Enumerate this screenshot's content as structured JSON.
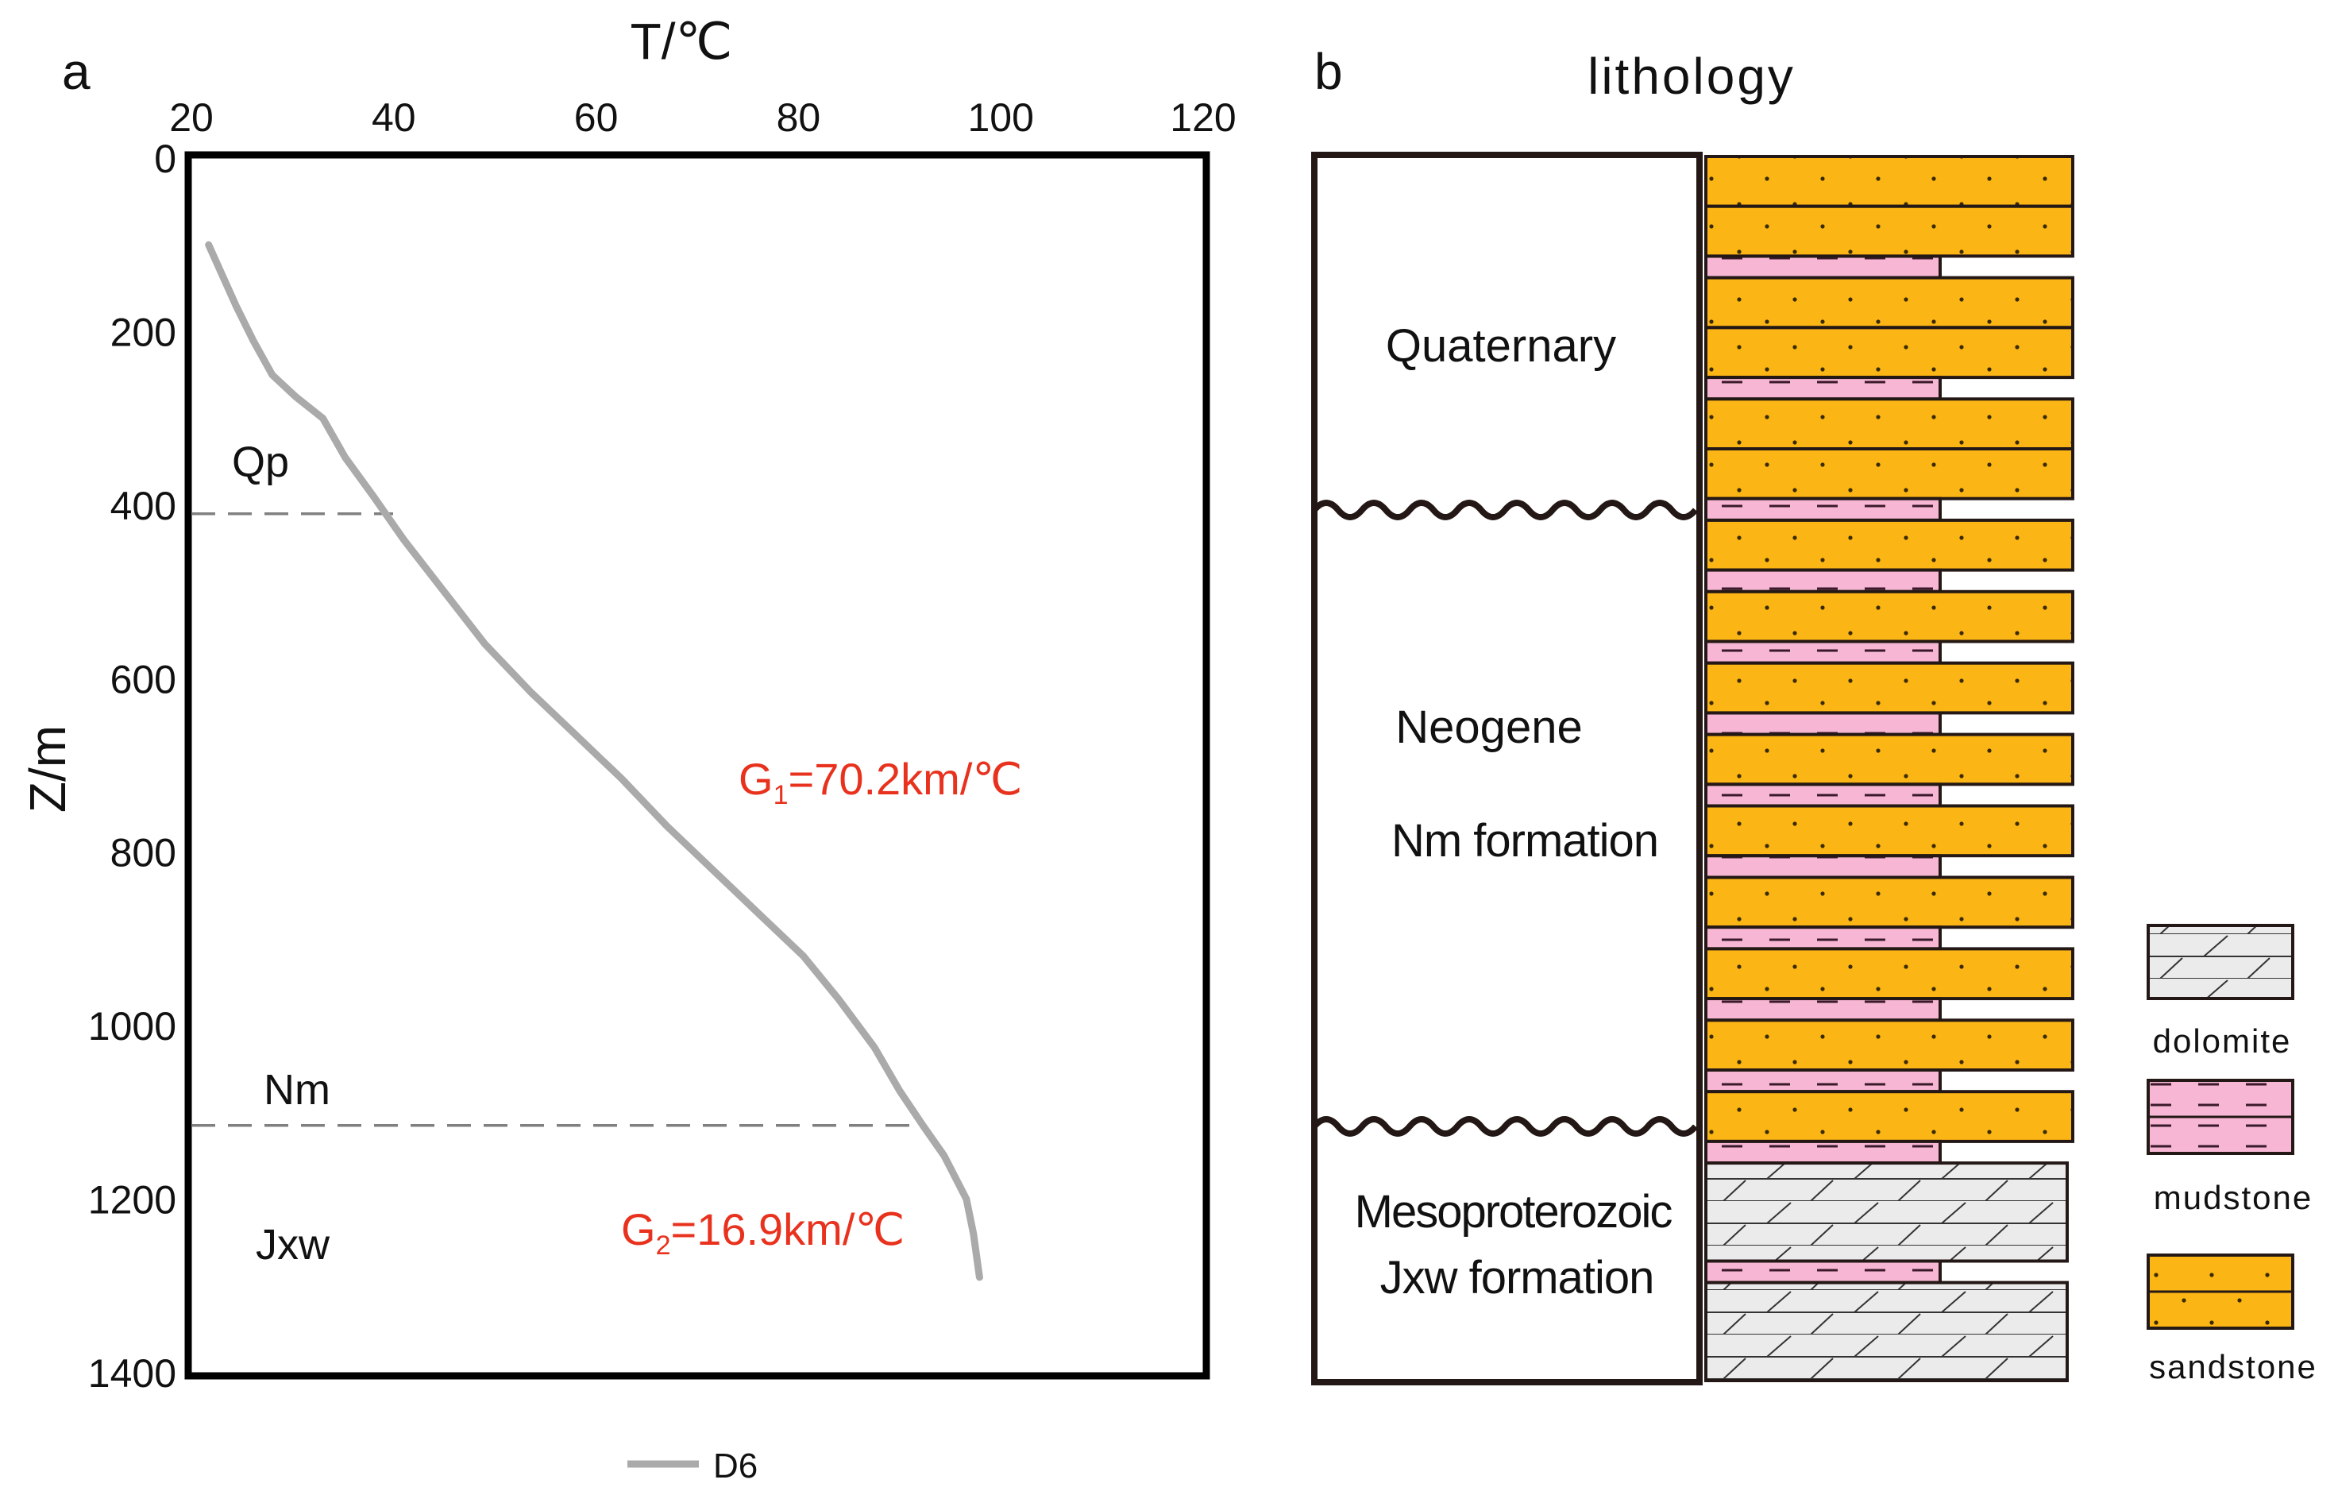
{
  "chart_data": [
    {
      "type": "line",
      "panel_label": "a",
      "title": "",
      "xlabel": "T/℃",
      "ylabel": "Z/m",
      "x_axis_position": "top",
      "xlim": [
        20,
        120
      ],
      "ylim": [
        1400,
        0
      ],
      "xticks": [
        "20",
        "40",
        "60",
        "80",
        "100",
        "120"
      ],
      "yticks": [
        "0",
        "200",
        "400",
        "600",
        "800",
        "1000",
        "1200",
        "1400"
      ],
      "grid": false,
      "legend": {
        "position": "bottom-center",
        "entries": [
          "D6"
        ]
      },
      "series": [
        {
          "name": "D6",
          "color": "#aaaaaa",
          "x": [
            21.7,
            24.4,
            26.1,
            28.0,
            30.3,
            33.0,
            35.2,
            38.0,
            41.0,
            45.0,
            49.0,
            53.5,
            58.0,
            62.5,
            67.0,
            71.5,
            76.0,
            80.5,
            84.0,
            87.5,
            90.0,
            92.3,
            94.4,
            96.6,
            97.3,
            97.9
          ],
          "y": [
            100,
            170,
            210,
            250,
            275,
            300,
            345,
            390,
            440,
            500,
            560,
            615,
            665,
            715,
            770,
            820,
            870,
            920,
            970,
            1025,
            1075,
            1115,
            1150,
            1200,
            1240,
            1290
          ]
        }
      ],
      "boundaries": [
        {
          "depth": 410,
          "label_above": "Qp",
          "label_below": ""
        },
        {
          "depth": 1115,
          "label_above": "Nm",
          "label_below": "Jxw"
        }
      ],
      "annotations": [
        {
          "text_main": "G",
          "text_sub": "1",
          "text_rest": "=70.2km/℃",
          "color": "#e8321e"
        },
        {
          "text_main": "G",
          "text_sub": "2",
          "text_rest": "=16.9km/℃",
          "color": "#e8321e"
        }
      ]
    },
    {
      "type": "table",
      "panel_label": "b",
      "title": "lithology",
      "units": [
        {
          "lines": [
            "Quaternary"
          ]
        },
        {
          "lines": [
            "Neogene",
            "Nm formation"
          ]
        },
        {
          "lines": [
            "Mesoproterozoic",
            "Jxw formation"
          ]
        }
      ],
      "unconformities": 2,
      "column_sequence": [
        "sandstone",
        "sandstone",
        "mudstone",
        "sandstone",
        "sandstone",
        "mudstone",
        "sandstone",
        "sandstone",
        "mudstone",
        "sandstone",
        "mudstone",
        "sandstone",
        "mudstone",
        "sandstone",
        "mudstone",
        "sandstone",
        "mudstone",
        "sandstone",
        "mudstone",
        "sandstone",
        "mudstone",
        "sandstone",
        "mudstone",
        "sandstone",
        "mudstone",
        "sandstone",
        "mudstone",
        "dolomite",
        "mudstone",
        "dolomite"
      ],
      "legend": [
        {
          "key": "dolomite",
          "label": "dolomite",
          "color": "#ebebeb"
        },
        {
          "key": "mudstone",
          "label": "mudstone",
          "color": "#f7b7d4"
        },
        {
          "key": "sandstone",
          "label": "sandstone",
          "color": "#fbb514"
        }
      ]
    }
  ]
}
